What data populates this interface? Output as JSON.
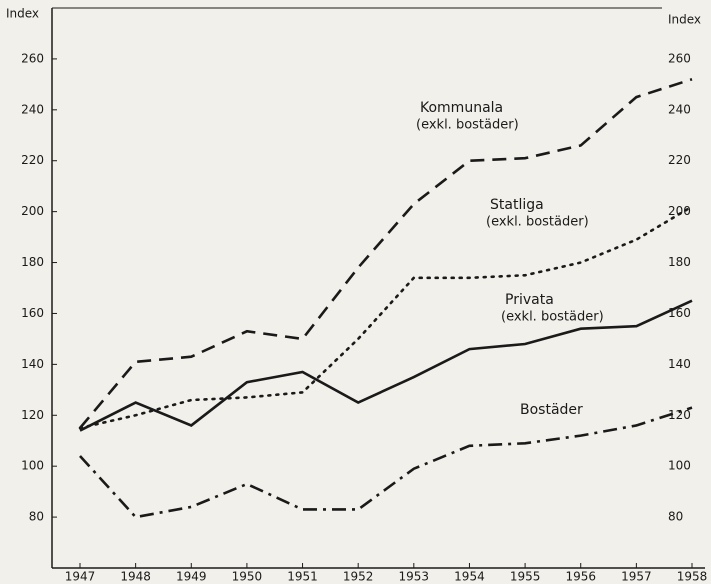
{
  "chart_data": {
    "type": "line",
    "y_label": "Index",
    "categories": [
      "1947",
      "1948",
      "1949",
      "1950",
      "1951",
      "1952",
      "1953",
      "1954",
      "1955",
      "1956",
      "1957",
      "1958"
    ],
    "ylim": [
      60,
      280
    ],
    "yticks": [
      80,
      100,
      120,
      140,
      160,
      180,
      200,
      220,
      240,
      260
    ],
    "grid": false,
    "series": [
      {
        "name": "Kommunala",
        "note": "(exkl. bostäder)",
        "color": "#1a1a1a",
        "linestyle": "dashed",
        "values": [
          115,
          141,
          143,
          153,
          150,
          178,
          203,
          220,
          221,
          226,
          245,
          252
        ]
      },
      {
        "name": "Statliga",
        "note": "(exkl. bostäder)",
        "color": "#1a1a1a",
        "linestyle": "dotted",
        "values": [
          115,
          120,
          126,
          127,
          129,
          150,
          174,
          174,
          175,
          180,
          189,
          202
        ]
      },
      {
        "name": "Privata",
        "note": "(exkl. bostäder)",
        "color": "#1a1a1a",
        "linestyle": "solid",
        "values": [
          114,
          125,
          116,
          133,
          137,
          125,
          135,
          146,
          148,
          154,
          155,
          165
        ]
      },
      {
        "name": "Bostäder",
        "color": "#1a1a1a",
        "linestyle": "dashdot",
        "values": [
          104,
          80,
          84,
          93,
          83,
          83,
          99,
          108,
          109,
          112,
          116,
          123
        ]
      }
    ]
  }
}
